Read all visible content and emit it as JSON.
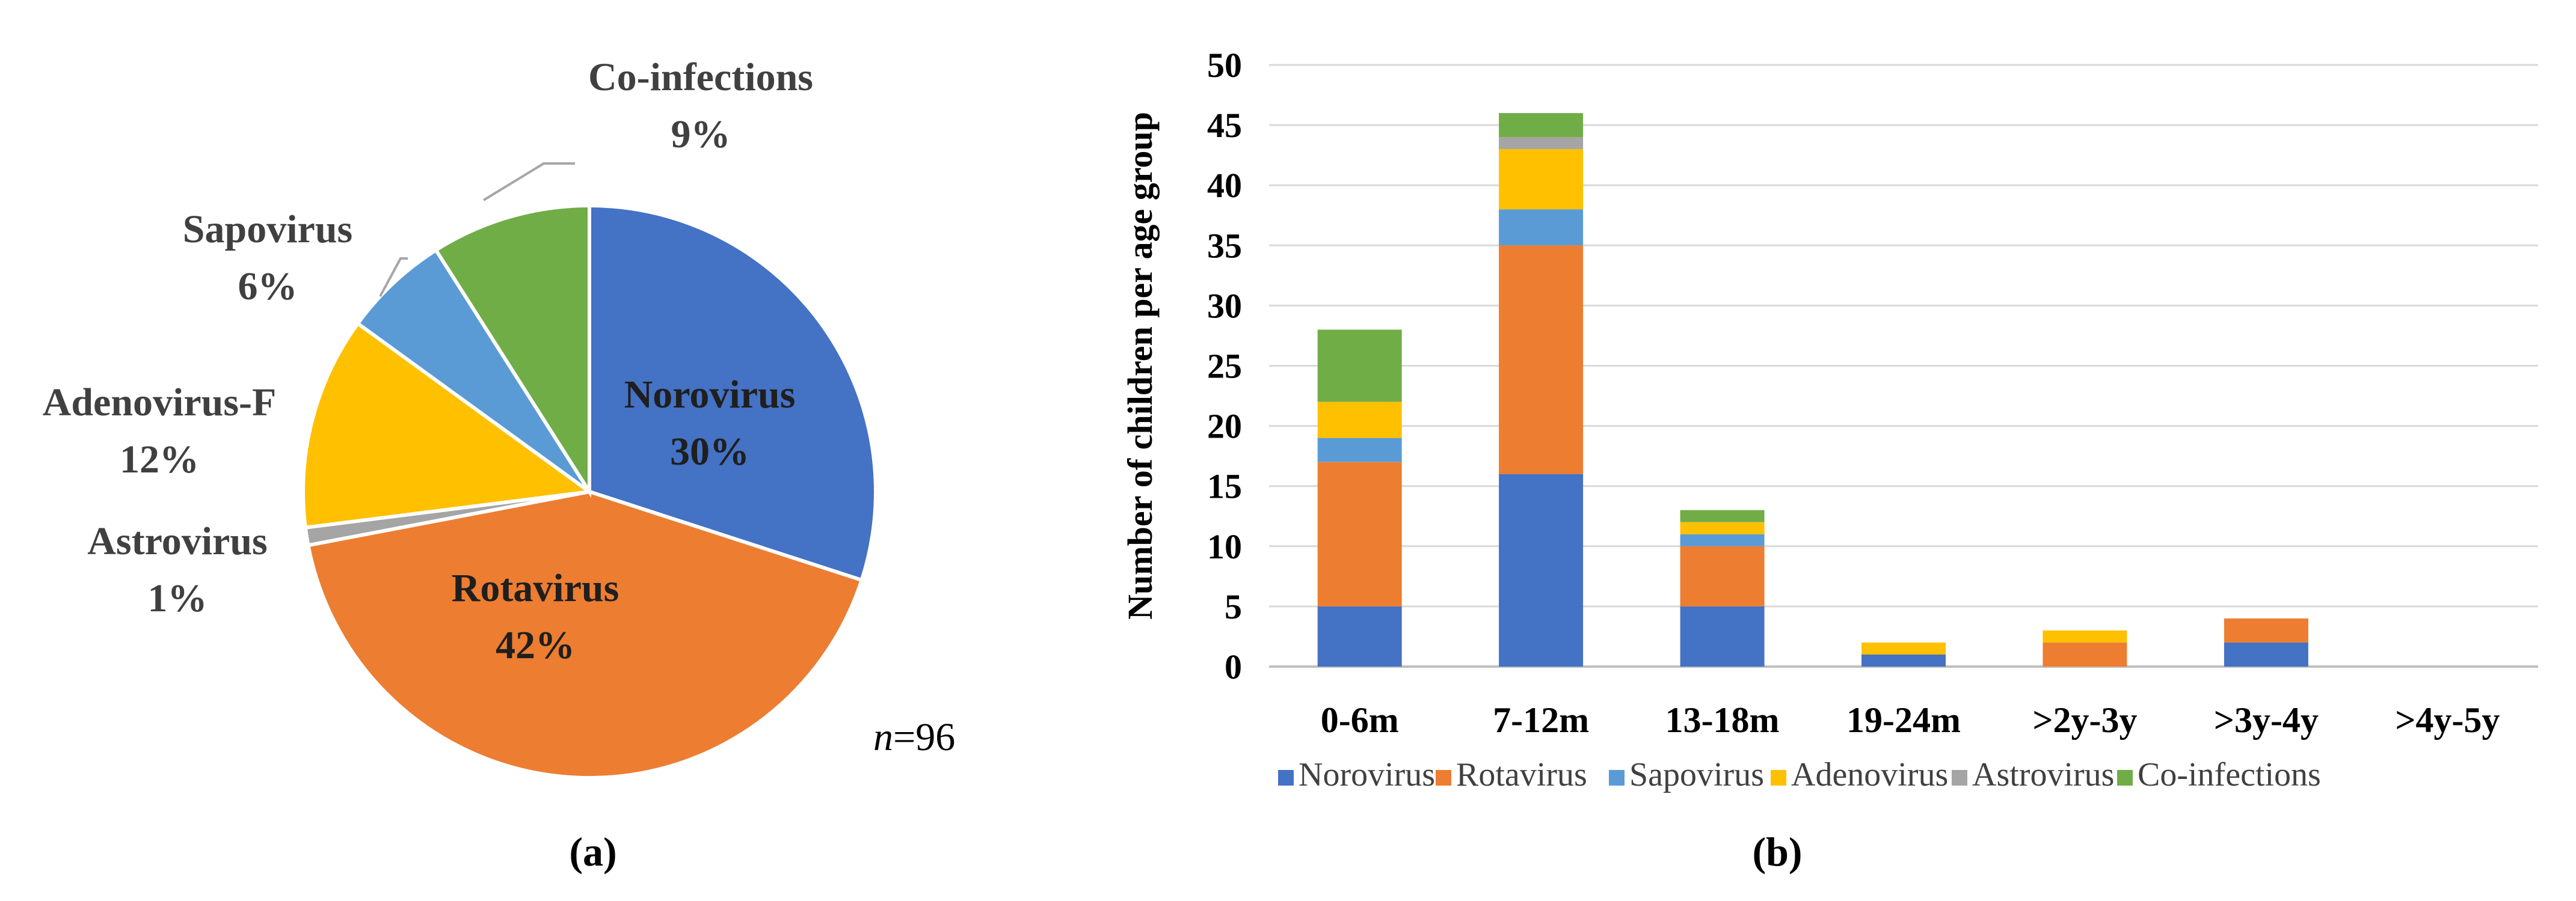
{
  "chart_data": [
    {
      "type": "pie",
      "n_prefix": "n",
      "n_suffix": "=96",
      "caption": "(a)",
      "slices": [
        {
          "label": "Norovirus",
          "percent_label": "30%",
          "value": 30,
          "color": "#4472C4"
        },
        {
          "label": "Rotavirus",
          "percent_label": "42%",
          "value": 42,
          "color": "#ED7D31"
        },
        {
          "label": "Astrovirus",
          "percent_label": "1%",
          "value": 1,
          "color": "#A5A5A5"
        },
        {
          "label": "Adenovirus-F",
          "percent_label": "12%",
          "value": 12,
          "color": "#FFC000"
        },
        {
          "label": "Sapovirus",
          "percent_label": "6%",
          "value": 6,
          "color": "#5B9BD5"
        },
        {
          "label": "Co-infections",
          "percent_label": "9%",
          "value": 9,
          "color": "#70AD47"
        }
      ]
    },
    {
      "type": "bar",
      "stacked": true,
      "caption": "(b)",
      "ylabel": "Number of children per age group",
      "ylim": [
        0,
        50
      ],
      "yticks": [
        "0",
        "5",
        "10",
        "15",
        "20",
        "25",
        "30",
        "35",
        "40",
        "45",
        "50"
      ],
      "grid": true,
      "legend": "bottom",
      "categories": [
        "0-6m",
        "7-12m",
        "13-18m",
        "19-24m",
        ">2y-3y",
        ">3y-4y",
        ">4y-5y"
      ],
      "series": [
        {
          "name": "Norovirus",
          "color": "#4472C4",
          "values": [
            5,
            16,
            5,
            1,
            0,
            2,
            0
          ]
        },
        {
          "name": "Rotavirus",
          "color": "#ED7D31",
          "values": [
            12,
            19,
            5,
            0,
            2,
            2,
            0
          ]
        },
        {
          "name": "Sapovirus",
          "color": "#5B9BD5",
          "values": [
            2,
            3,
            1,
            0,
            0,
            0,
            0
          ]
        },
        {
          "name": "Adenovirus",
          "color": "#FFC000",
          "values": [
            3,
            5,
            1,
            1,
            1,
            0,
            0
          ]
        },
        {
          "name": "Astrovirus",
          "color": "#A5A5A5",
          "values": [
            0,
            1,
            0,
            0,
            0,
            0,
            0
          ]
        },
        {
          "name": "Co-infections",
          "color": "#70AD47",
          "values": [
            6,
            2,
            1,
            0,
            0,
            0,
            0
          ]
        }
      ]
    }
  ]
}
